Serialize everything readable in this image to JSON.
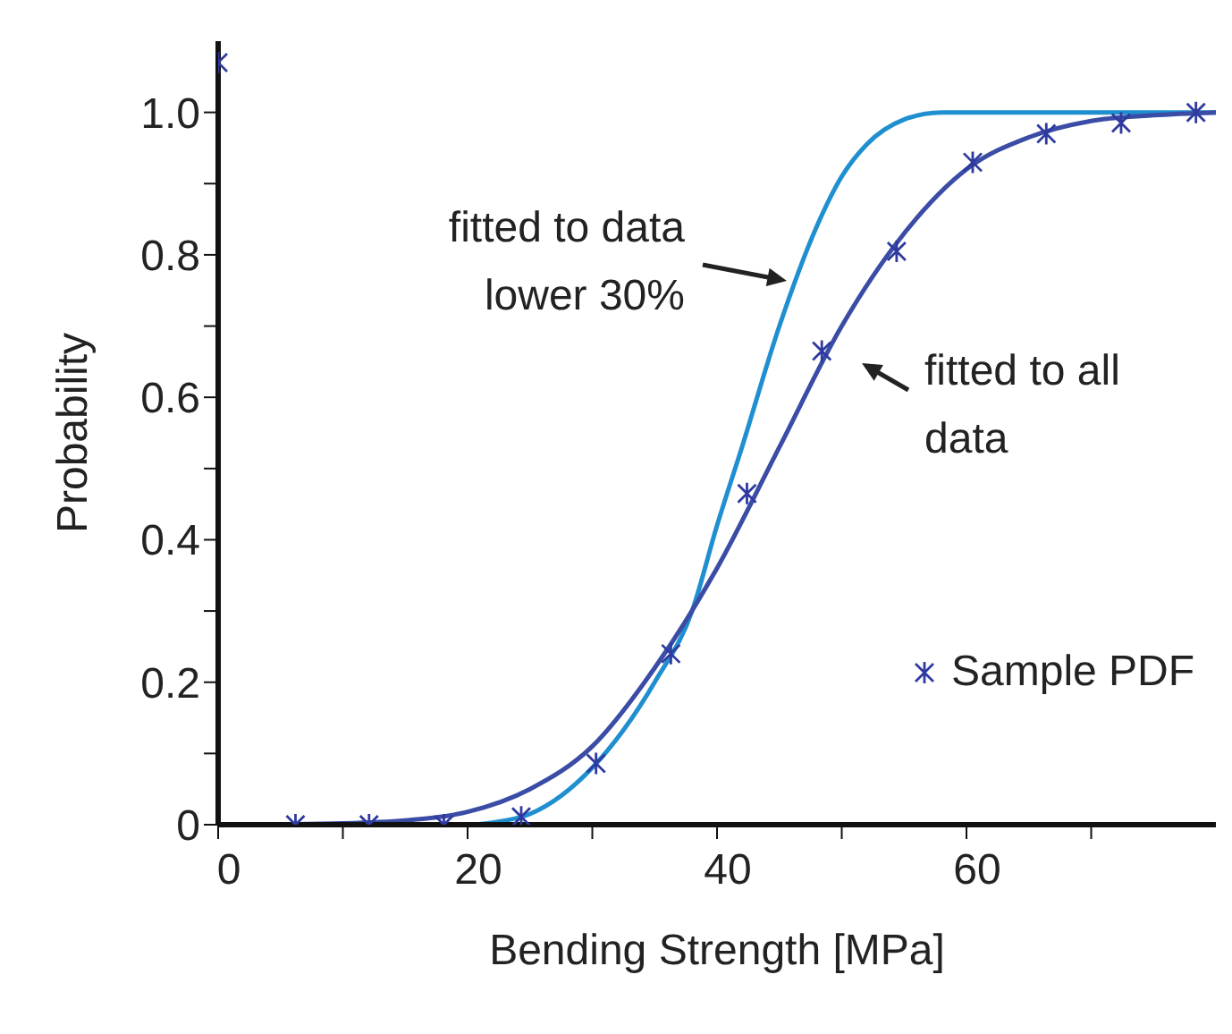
{
  "chart_data": {
    "type": "line",
    "xlabel": "Bending Strength [MPa]",
    "ylabel": "Probability",
    "xlim": [
      0,
      80
    ],
    "ylim": [
      0,
      1.1
    ],
    "xticks": [
      0,
      {
        "value": 10,
        "label": null
      },
      20,
      {
        "value": 30,
        "label": null
      },
      40,
      {
        "value": 50,
        "label": null
      },
      60,
      {
        "value": 70,
        "label": null
      }
    ],
    "yticks": [
      {
        "value": 0,
        "label": "0"
      },
      {
        "value": 0.1,
        "label": null
      },
      0.2,
      {
        "value": 0.3,
        "label": null
      },
      0.4,
      {
        "value": 0.5,
        "label": null
      },
      0.6,
      {
        "value": 0.7,
        "label": null
      },
      0.8,
      {
        "value": 0.9,
        "label": null
      },
      {
        "value": 1,
        "label": "1.0"
      }
    ],
    "grid": false,
    "legend": "right",
    "line_style": "solid",
    "series": [
      {
        "color": "#1f8fd0",
        "marker": "none",
        "x": [
          0,
          10,
          20,
          22,
          25,
          30,
          35,
          38,
          40,
          42,
          45,
          48,
          50,
          52,
          55,
          58,
          65,
          80
        ],
        "values": [
          0,
          0,
          0,
          0.003,
          0.015,
          0.08,
          0.2,
          0.3,
          0.42,
          0.53,
          0.7,
          0.84,
          0.91,
          0.955,
          0.99,
          1,
          1,
          1
        ]
      },
      {
        "color": "#3a4ca5",
        "marker": "none",
        "x": [
          0,
          10,
          15,
          20,
          25,
          30,
          35,
          40,
          45,
          50,
          55,
          60,
          65,
          70,
          75,
          80
        ],
        "values": [
          0,
          0.002,
          0.006,
          0.018,
          0.05,
          0.11,
          0.22,
          0.36,
          0.53,
          0.7,
          0.83,
          0.92,
          0.965,
          0.988,
          0.996,
          1
        ]
      },
      {
        "type": "scatter",
        "name": "Sample PDF",
        "color": "#2e3a9f",
        "marker": "cross",
        "x": [
          0,
          6.2,
          12.1,
          18.1,
          24.3,
          30.3,
          36.3,
          42.4,
          48.4,
          54.4,
          60.5,
          66.4,
          72.4,
          78.4
        ],
        "values": [
          1.07,
          0,
          0,
          0,
          0.011,
          0.086,
          0.24,
          0.465,
          0.665,
          0.805,
          0.93,
          0.97,
          0.985,
          1
        ]
      }
    ],
    "annotations": [
      "fitted to data\nlower 30%",
      "fitted to all\ndata"
    ]
  }
}
